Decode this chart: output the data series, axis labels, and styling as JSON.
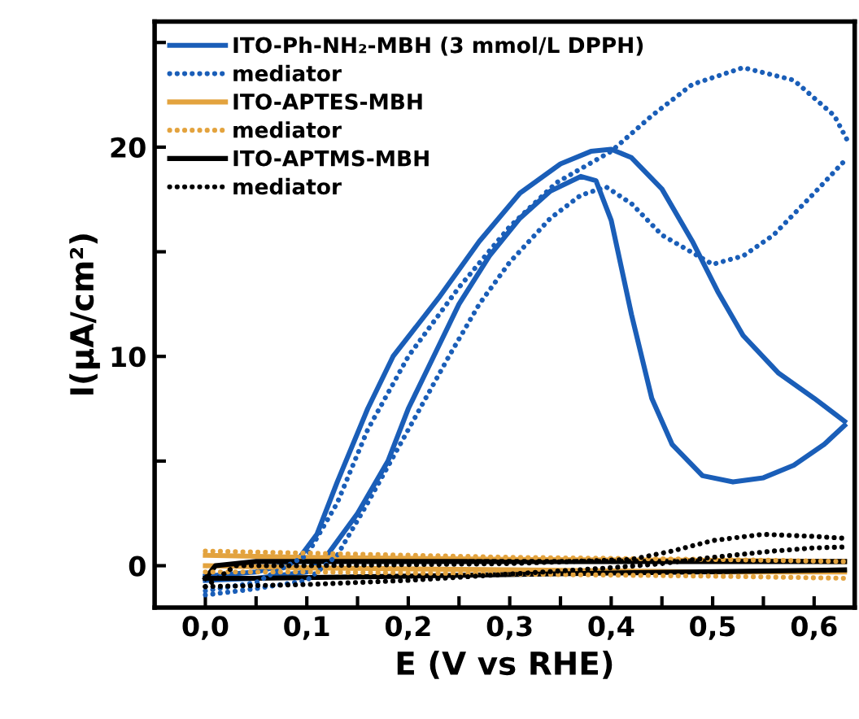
{
  "chart_data": {
    "type": "line",
    "xlabel": "E (V vs RHE)",
    "ylabel": "I(μA/cm²)",
    "xlim": [
      -0.05,
      0.64
    ],
    "ylim": [
      -2,
      26
    ],
    "xticks": [
      {
        "value": 0.0,
        "label": "0,0"
      },
      {
        "value": 0.05,
        "label": null
      },
      {
        "value": 0.1,
        "label": "0,1"
      },
      {
        "value": 0.15,
        "label": null
      },
      {
        "value": 0.2,
        "label": "0,2"
      },
      {
        "value": 0.25,
        "label": null
      },
      {
        "value": 0.3,
        "label": "0,3"
      },
      {
        "value": 0.35,
        "label": null
      },
      {
        "value": 0.4,
        "label": "0,4"
      },
      {
        "value": 0.45,
        "label": null
      },
      {
        "value": 0.5,
        "label": "0,5"
      },
      {
        "value": 0.55,
        "label": null
      },
      {
        "value": 0.6,
        "label": "0,6"
      }
    ],
    "yticks": [
      0,
      {
        "value": 5,
        "label": null
      },
      10,
      {
        "value": 15,
        "label": null
      },
      20,
      {
        "value": 25,
        "label": null
      }
    ],
    "legend": "top left",
    "series": [
      {
        "name": "ITO-Ph-NH₂-MBH (3 mmol/L DPPH)",
        "color": "#1a5eb8",
        "line_style": "solid",
        "x": [
          0,
          0.05,
          0.1,
          0.12,
          0.15,
          0.18,
          0.2,
          0.225,
          0.25,
          0.28,
          0.31,
          0.34,
          0.37,
          0.385,
          0.4,
          0.42,
          0.44,
          0.46,
          0.49,
          0.52,
          0.55,
          0.58,
          0.61,
          0.63
        ],
        "values": [
          -0.7,
          -0.6,
          -0.3,
          0.5,
          2.5,
          5,
          7.5,
          10,
          12.5,
          14.8,
          16.6,
          17.9,
          18.6,
          18.4,
          16.5,
          12,
          8,
          5.8,
          4.3,
          4.0,
          4.2,
          4.8,
          5.8,
          6.7
        ]
      },
      {
        "color": "#1a5eb8",
        "line_style": "solid",
        "x": [
          0,
          0.05,
          0.09,
          0.11,
          0.13,
          0.16,
          0.185,
          0.23,
          0.27,
          0.31,
          0.35,
          0.38,
          0.4,
          0.42,
          0.45,
          0.48,
          0.505,
          0.53,
          0.565,
          0.6,
          0.63
        ],
        "values": [
          -0.5,
          -0.3,
          0.2,
          1.5,
          4,
          7.5,
          10,
          12.8,
          15.5,
          17.8,
          19.2,
          19.8,
          19.9,
          19.5,
          18,
          15.5,
          13.1,
          11,
          9.2,
          8.0,
          6.9
        ]
      },
      {
        "name": "mediator",
        "color": "#1a5eb8",
        "line_style": "dotted",
        "x": [
          0,
          0.05,
          0.1,
          0.13,
          0.16,
          0.2,
          0.24,
          0.27,
          0.3,
          0.34,
          0.37,
          0.395,
          0.42,
          0.45,
          0.5,
          0.53,
          0.56,
          0.6,
          0.633
        ],
        "values": [
          -1.4,
          -1.1,
          -0.7,
          0.5,
          3,
          6.5,
          10,
          12.5,
          14.5,
          16.6,
          17.7,
          18.1,
          17.3,
          15.8,
          14.4,
          14.8,
          15.8,
          17.8,
          19.5
        ]
      },
      {
        "color": "#1a5eb8",
        "line_style": "dotted",
        "x": [
          0,
          0.05,
          0.1,
          0.13,
          0.16,
          0.2,
          0.25,
          0.3,
          0.346,
          0.4,
          0.44,
          0.48,
          0.53,
          0.58,
          0.62,
          0.633
        ],
        "values": [
          -1.2,
          -0.8,
          0.5,
          3,
          6.5,
          10,
          13.3,
          16.2,
          18.3,
          19.8,
          21.5,
          23,
          23.8,
          23.2,
          21.5,
          20.3
        ]
      },
      {
        "name": "ITO-APTES-MBH",
        "color": "#e3a33e",
        "line_style": "solid",
        "x": [
          0,
          0.1,
          0.3,
          0.5,
          0.63
        ],
        "values": [
          0.0,
          -0.1,
          -0.2,
          -0.3,
          -0.3
        ]
      },
      {
        "color": "#e3a33e",
        "line_style": "solid",
        "x": [
          0,
          0.1,
          0.3,
          0.5,
          0.63
        ],
        "values": [
          0.5,
          0.4,
          0.3,
          0.25,
          0.2
        ]
      },
      {
        "name": "mediator",
        "color": "#e3a33e",
        "line_style": "dotted",
        "x": [
          0,
          0.1,
          0.3,
          0.5,
          0.63
        ],
        "values": [
          -0.3,
          -0.3,
          -0.4,
          -0.5,
          -0.6
        ]
      },
      {
        "color": "#e3a33e",
        "line_style": "dotted",
        "x": [
          0,
          0.1,
          0.3,
          0.5,
          0.63
        ],
        "values": [
          0.7,
          0.6,
          0.4,
          0.3,
          0.2
        ]
      },
      {
        "name": "ITO-APTMS-MBH",
        "color": "#000000",
        "line_style": "solid",
        "x": [
          0,
          0.05,
          0.2,
          0.4,
          0.63
        ],
        "values": [
          -0.6,
          -0.6,
          -0.5,
          -0.35,
          -0.2
        ]
      },
      {
        "color": "#000000",
        "line_style": "solid",
        "x": [
          0,
          0.01,
          0.05,
          0.2,
          0.4,
          0.63
        ],
        "values": [
          -0.6,
          0.0,
          0.2,
          0.2,
          0.2,
          0.2
        ]
      },
      {
        "name": "mediator",
        "color": "#000000",
        "line_style": "dotted",
        "x": [
          0,
          0.1,
          0.2,
          0.3,
          0.4,
          0.45,
          0.5,
          0.56,
          0.6,
          0.633
        ],
        "values": [
          -1.0,
          -0.9,
          -0.7,
          -0.4,
          -0.1,
          0.1,
          0.4,
          0.7,
          0.85,
          0.9
        ]
      },
      {
        "color": "#000000",
        "line_style": "dotted",
        "x": [
          0,
          0.03,
          0.1,
          0.3,
          0.42,
          0.46,
          0.5,
          0.55,
          0.6,
          0.633
        ],
        "values": [
          -1.0,
          0.0,
          0.0,
          0.1,
          0.3,
          0.7,
          1.2,
          1.5,
          1.4,
          1.3
        ]
      }
    ]
  }
}
